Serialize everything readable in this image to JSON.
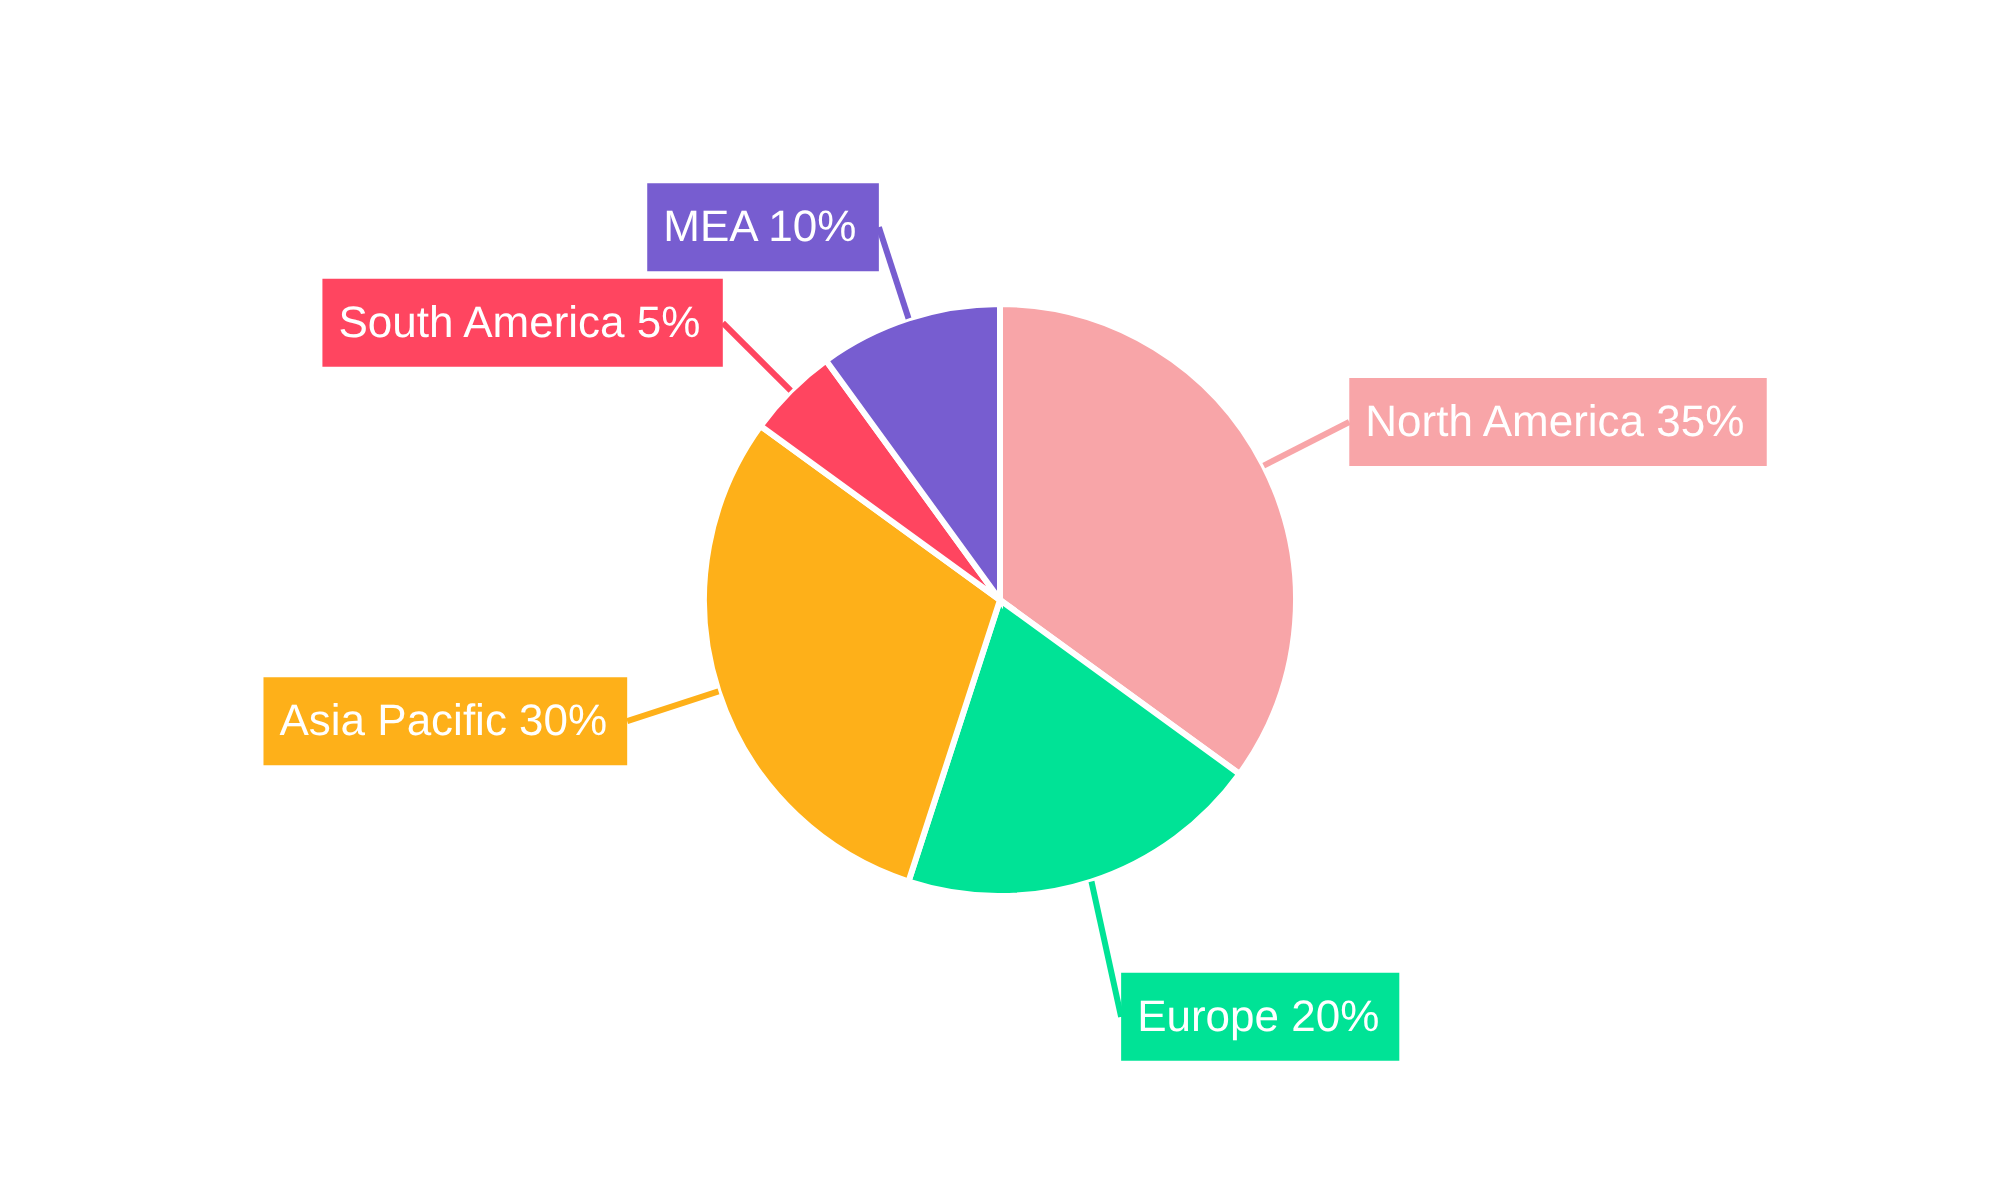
{
  "chart_data": {
    "type": "pie",
    "categories": [
      "North America",
      "Europe",
      "Asia Pacific",
      "South America",
      "MEA"
    ],
    "values": [
      35,
      20,
      30,
      5,
      10
    ],
    "value_labels": [
      "35%",
      "20%",
      "30%",
      "5%",
      "10%"
    ],
    "colors": [
      "#f8a5a8",
      "#00e396",
      "#feb019",
      "#ff4560",
      "#775dd0"
    ]
  }
}
